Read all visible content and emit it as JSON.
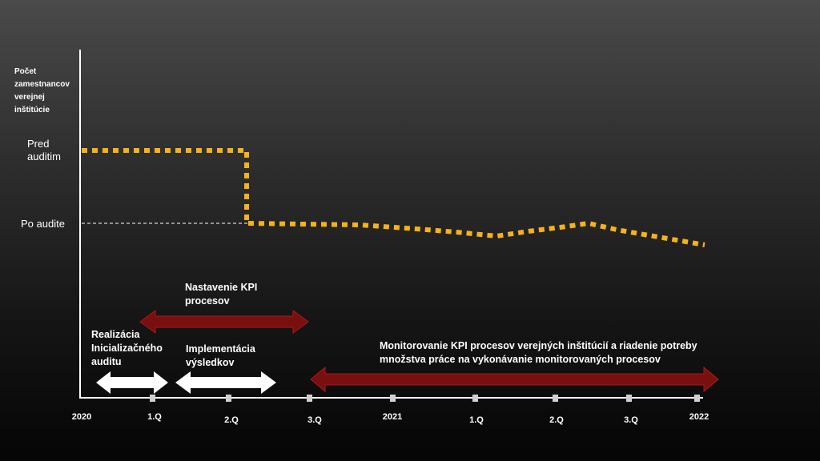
{
  "y_axis": {
    "title_lines": [
      "Počet",
      "zamestnancov",
      "verejnej",
      "inštitúcie"
    ],
    "pred_lines": [
      "Pred",
      "auditim"
    ],
    "po_label": "Po audite"
  },
  "x_axis": {
    "ticks": [
      "2020",
      "1.Q",
      "2.Q",
      "3.Q",
      "2021",
      "1.Q",
      "2.Q",
      "3.Q",
      "2022"
    ]
  },
  "phases": {
    "realizacia_lines": [
      "Realizácia",
      "Inicializačného",
      "auditu"
    ],
    "nastavenie_lines": [
      "Nastavenie KPI",
      "procesov"
    ],
    "implementacia_lines": [
      "Implementácia",
      "výsledkov"
    ],
    "monitorovanie_lines": [
      "Monitorovanie KPI procesov verejných inštitúcií a riadenie potreby",
      "množstva práce na vykonávanie monitorovaných procesov"
    ]
  },
  "colors": {
    "line": "#f5b21a",
    "white_arrow": "#ffffff",
    "red_arrow": "#7a0f0f",
    "axis": "#ffffff"
  }
}
